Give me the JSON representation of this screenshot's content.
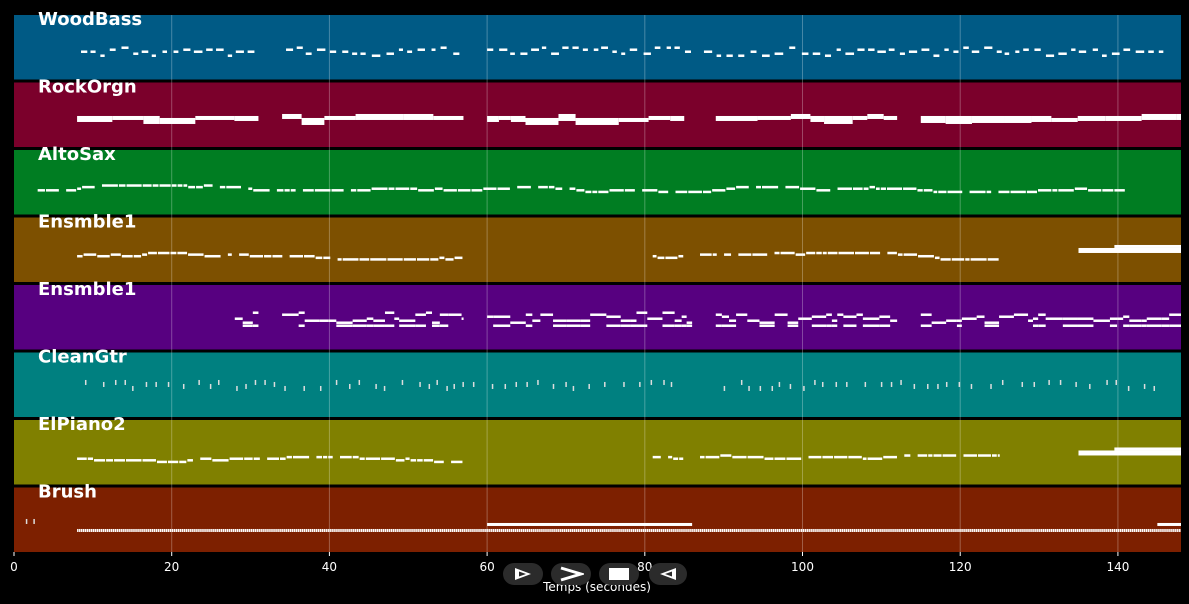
{
  "chart_data": {
    "type": "piano-roll",
    "xlabel": "Temps (secondes)",
    "xlim": [
      0,
      148
    ],
    "xticks": [
      0,
      20,
      40,
      60,
      80,
      100,
      120,
      140
    ],
    "grid": true,
    "tracks": [
      {
        "name": "WoodBass",
        "color": "#005a85",
        "pattern": "bass",
        "segments": [
          [
            8.5,
            31,
            "bass"
          ],
          [
            34.5,
            57,
            "bass"
          ],
          [
            60,
            86,
            "bass"
          ],
          [
            87.5,
            146,
            "bass"
          ]
        ]
      },
      {
        "name": "RockOrgn",
        "color": "#7b002b",
        "pattern": "chord",
        "segments": [
          [
            8,
            31,
            "chord"
          ],
          [
            34,
            57,
            "chord"
          ],
          [
            60,
            85,
            "chord"
          ],
          [
            89,
            112,
            "chord"
          ],
          [
            115,
            148,
            "chord"
          ]
        ]
      },
      {
        "name": "AltoSax",
        "color": "#007d22",
        "pattern": "melody",
        "segments": [
          [
            3,
            141,
            "melody"
          ]
        ]
      },
      {
        "name": "Ensmble1",
        "color": "#7d5000",
        "pattern": "melody",
        "segments": [
          [
            8,
            57,
            "melody"
          ],
          [
            81,
            85,
            "melody"
          ],
          [
            87,
            125,
            "melody"
          ],
          [
            135,
            148,
            "block"
          ]
        ]
      },
      {
        "name": "Ensmble1",
        "color": "#570080",
        "pattern": "strings",
        "segments": [
          [
            28,
            31,
            "strings"
          ],
          [
            34,
            57,
            "strings"
          ],
          [
            60,
            86,
            "strings"
          ],
          [
            89,
            112,
            "strings"
          ],
          [
            115,
            148,
            "strings"
          ]
        ]
      },
      {
        "name": "CleanGtr",
        "color": "#008080",
        "pattern": "ticks",
        "segments": [
          [
            9,
            85,
            "ticks"
          ],
          [
            90,
            145,
            "ticks"
          ]
        ]
      },
      {
        "name": "ElPiano2",
        "color": "#808000",
        "pattern": "melody",
        "segments": [
          [
            8,
            57,
            "melody"
          ],
          [
            81,
            85,
            "melody"
          ],
          [
            87,
            125,
            "melody"
          ],
          [
            135,
            148,
            "block"
          ]
        ]
      },
      {
        "name": "Brush",
        "color": "#7d2000",
        "pattern": "drum",
        "segments": [
          [
            1.5,
            2.5,
            "ticks"
          ],
          [
            8,
            148,
            "drum"
          ],
          [
            60,
            86,
            "sustain"
          ],
          [
            145,
            148,
            "sustain"
          ]
        ]
      }
    ]
  },
  "controls": [
    {
      "name": "play-forward-button",
      "icon": "play-outline-icon"
    },
    {
      "name": "next-button",
      "icon": "chevron-right-icon"
    },
    {
      "name": "stop-button",
      "icon": "stop-icon"
    },
    {
      "name": "play-reverse-button",
      "icon": "play-reverse-outline-icon"
    }
  ]
}
